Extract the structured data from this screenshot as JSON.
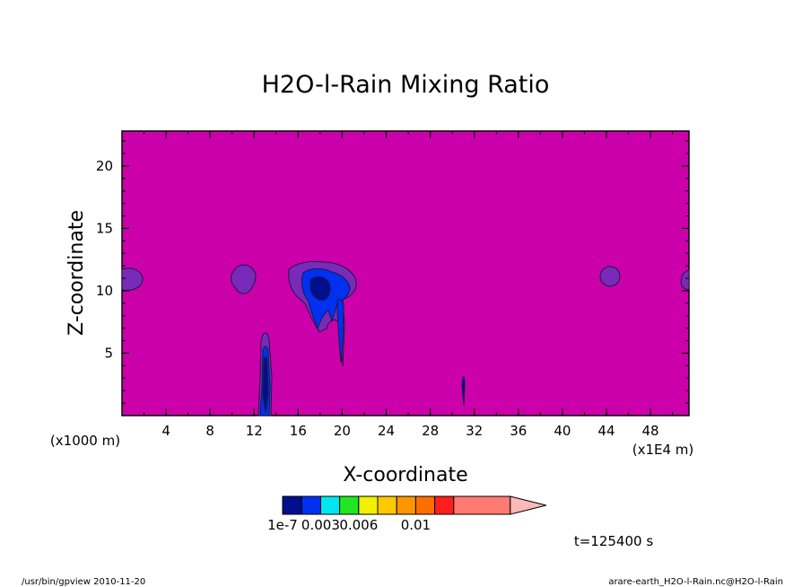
{
  "chart_data": {
    "type": "heatmap",
    "title": "H2O-l-Rain Mixing Ratio",
    "xlabel": "X-coordinate",
    "ylabel": "Z-coordinate",
    "x_unit_left": "(x1000 m)",
    "x_unit_right": "(x1E4 m)",
    "x_ticks": [
      "4",
      "8",
      "12",
      "16",
      "20",
      "24",
      "28",
      "32",
      "36",
      "40",
      "44",
      "48"
    ],
    "x_tick_values": [
      4,
      8,
      12,
      16,
      20,
      24,
      28,
      32,
      36,
      40,
      44,
      48
    ],
    "y_ticks": [
      "5",
      "10",
      "15",
      "20"
    ],
    "y_tick_values": [
      5,
      10,
      15,
      20
    ],
    "xlim": [
      0,
      51.5
    ],
    "ylim": [
      0,
      22.8
    ],
    "background_color": "#cc00aa",
    "colorbar": {
      "colors": [
        "#000f8e",
        "#0030f0",
        "#00e6f0",
        "#22e622",
        "#f0f000",
        "#ffc800",
        "#ff9600",
        "#ff6e00",
        "#ff1e1e",
        "#ff7a73",
        "#ffb8b8"
      ],
      "labels": [
        "1e-7",
        "0.003",
        "0.006",
        "0.01"
      ],
      "label_positions": [
        0,
        2,
        4,
        7
      ]
    },
    "time_label": "t=125400 s",
    "footer_left": "/usr/bin/gpview  2010-11-20",
    "footer_right": "arare-earth_H2O-l-Rain.nc@H2O-l-Rain"
  }
}
